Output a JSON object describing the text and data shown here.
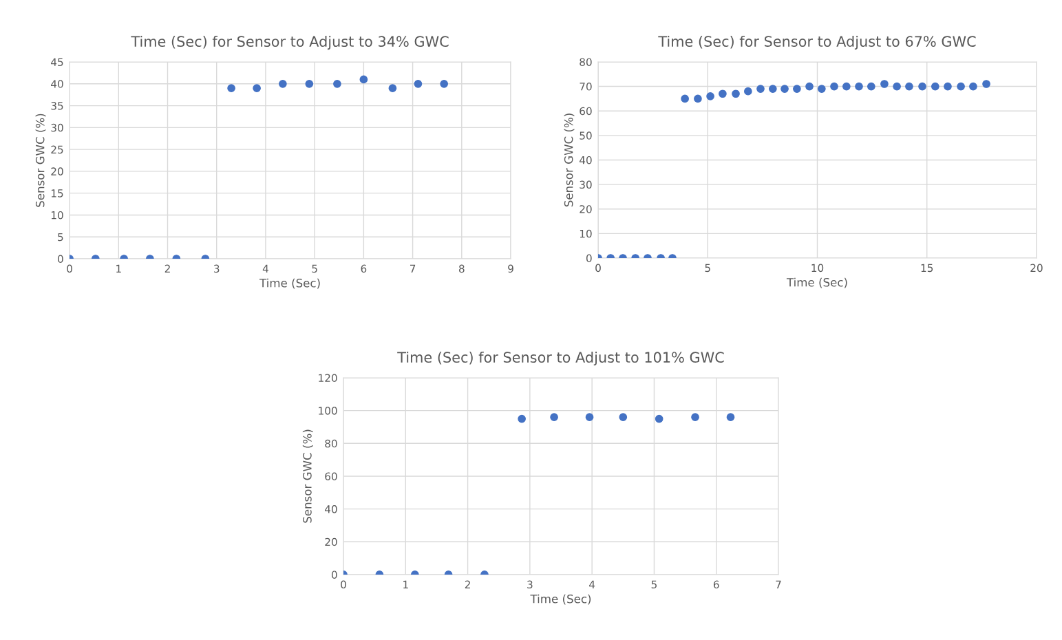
{
  "chart_data": [
    {
      "type": "scatter",
      "title": "Time (Sec) for Sensor to Adjust to 34% GWC",
      "xlabel": "Time (Sec)",
      "ylabel": "Sensor GWC (%)",
      "xlim": [
        0,
        9
      ],
      "xticks": [
        0,
        1,
        2,
        3,
        4,
        5,
        6,
        7,
        8,
        9
      ],
      "ylim": [
        0,
        45
      ],
      "yticks": [
        0,
        5,
        10,
        15,
        20,
        25,
        30,
        35,
        40,
        45
      ],
      "grid": true,
      "marker": "circle",
      "series": [
        {
          "color": "#4472c4",
          "x": [
            0,
            0.53,
            1.11,
            1.64,
            2.18,
            2.77,
            3.3,
            3.82,
            4.35,
            4.89,
            5.46,
            6.0,
            6.59,
            7.11,
            7.64
          ],
          "values": [
            0,
            0,
            0,
            0,
            0,
            0,
            39,
            39,
            40,
            40,
            40,
            41,
            39,
            40,
            40
          ]
        }
      ]
    },
    {
      "type": "scatter",
      "title": "Time (Sec) for Sensor to Adjust to 67% GWC",
      "xlabel": "Time (Sec)",
      "ylabel": "Sensor GWC (%)",
      "xlim": [
        0,
        20
      ],
      "xticks": [
        0,
        5,
        10,
        15,
        20
      ],
      "ylim": [
        0,
        80
      ],
      "yticks": [
        0,
        10,
        20,
        30,
        40,
        50,
        60,
        70,
        80
      ],
      "grid": true,
      "marker": "circle",
      "series": [
        {
          "color": "#4472c4",
          "x": [
            0,
            0.57,
            1.13,
            1.7,
            2.26,
            2.86,
            3.39,
            3.96,
            4.55,
            5.12,
            5.68,
            6.28,
            6.84,
            7.41,
            7.97,
            8.51,
            9.07,
            9.64,
            10.2,
            10.77,
            11.33,
            11.9,
            12.46,
            13.06,
            13.63,
            14.19,
            14.79,
            15.38,
            15.95,
            16.55,
            17.11,
            17.71
          ],
          "values": [
            0,
            0,
            0,
            0,
            0,
            0,
            0,
            65,
            65,
            66,
            67,
            67,
            68,
            69,
            69,
            69,
            69,
            70,
            69,
            70,
            70,
            70,
            70,
            71,
            70,
            70,
            70,
            70,
            70,
            70,
            70,
            71
          ]
        }
      ]
    },
    {
      "type": "scatter",
      "title": "Time (Sec) for Sensor to Adjust to 101% GWC",
      "xlabel": "Time (Sec)",
      "ylabel": "Sensor GWC (%)",
      "xlim": [
        0,
        7
      ],
      "xticks": [
        0,
        1,
        2,
        3,
        4,
        5,
        6,
        7
      ],
      "ylim": [
        0,
        120
      ],
      "yticks": [
        0,
        20,
        40,
        60,
        80,
        100,
        120
      ],
      "grid": true,
      "marker": "circle",
      "series": [
        {
          "color": "#4472c4",
          "x": [
            0,
            0.58,
            1.15,
            1.69,
            2.27,
            2.87,
            3.39,
            3.96,
            4.5,
            5.08,
            5.66,
            6.23
          ],
          "values": [
            0,
            0,
            0,
            0,
            0,
            95,
            96,
            96,
            96,
            95,
            96,
            96
          ]
        }
      ]
    }
  ]
}
